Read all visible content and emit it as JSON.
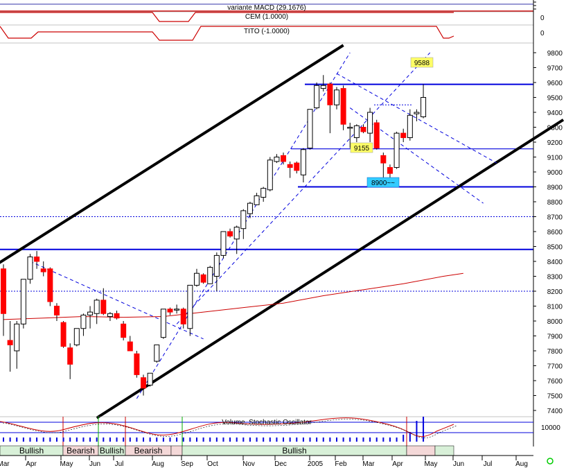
{
  "panels": {
    "macd": {
      "label": "variante MACD (29.1676)"
    },
    "cem": {
      "label": "CEM (1.0000)",
      "scale": "0"
    },
    "tito": {
      "label": "TITO (-1.0000)",
      "scale": "0"
    },
    "volume": {
      "label": "Volume, Stochastic Oscillator",
      "scale": "10000"
    }
  },
  "annotations": {
    "resistance": "9588",
    "mid": "9155",
    "support": "8900~~"
  },
  "bands": [
    {
      "label": "Bullish",
      "type": "bullish"
    },
    {
      "label": "Bearish",
      "type": "bearish"
    },
    {
      "label": "Bullish",
      "type": "bullish"
    },
    {
      "label": "Bearish",
      "type": "bearish"
    },
    {
      "label": "",
      "type": "bearish"
    },
    {
      "label": "Bullish",
      "type": "bullish"
    },
    {
      "label": "",
      "type": "bearish"
    },
    {
      "label": "",
      "type": "bullish"
    }
  ],
  "colors": {
    "bull": "#ffffff",
    "bear": "#ff0000",
    "blue": "#0000dd",
    "red_line": "#cc0000",
    "channel": "#000000",
    "label_yellow": "#ffff66",
    "label_cyan": "#33ccff",
    "bullish_band": "#d8f0d8",
    "bearish_band": "#f4d8d8"
  },
  "chart_data": {
    "type": "candlestick",
    "x_ticks": [
      "Mar",
      "Apr",
      "May",
      "Jun",
      "Jul",
      "Aug",
      "Sep",
      "Oct",
      "Nov",
      "Dec",
      "2005",
      "Feb",
      "Mar",
      "Apr",
      "May",
      "Jun",
      "Jul",
      "Aug"
    ],
    "ylim": [
      7400,
      9800
    ],
    "y_ticks": [
      7400,
      7500,
      7600,
      7700,
      7800,
      7900,
      8000,
      8100,
      8200,
      8300,
      8400,
      8500,
      8600,
      8700,
      8800,
      8900,
      9000,
      9100,
      9200,
      9300,
      9400,
      9500,
      9600,
      9700,
      9800
    ],
    "horizontal_lines": [
      {
        "y": 9588,
        "style": "solid"
      },
      {
        "y": 9155,
        "style": "solid"
      },
      {
        "y": 8900,
        "style": "solid"
      },
      {
        "y": 8480,
        "style": "solid"
      },
      {
        "y": 8700,
        "style": "dotted"
      },
      {
        "y": 8200,
        "style": "dotted"
      }
    ],
    "candles": [
      {
        "o": 8350,
        "h": 8380,
        "l": 7900,
        "c": 8050
      },
      {
        "o": 7870,
        "h": 8000,
        "l": 7660,
        "c": 7840
      },
      {
        "o": 7800,
        "h": 8000,
        "l": 7680,
        "c": 7980
      },
      {
        "o": 7980,
        "h": 8280,
        "l": 7950,
        "c": 8280
      },
      {
        "o": 8280,
        "h": 8450,
        "l": 8250,
        "c": 8430
      },
      {
        "o": 8430,
        "h": 8470,
        "l": 8350,
        "c": 8400
      },
      {
        "o": 8350,
        "h": 8400,
        "l": 8300,
        "c": 8330
      },
      {
        "o": 8350,
        "h": 8360,
        "l": 8100,
        "c": 8130
      },
      {
        "o": 8100,
        "h": 8120,
        "l": 8000,
        "c": 8040
      },
      {
        "o": 7990,
        "h": 8000,
        "l": 7820,
        "c": 7830
      },
      {
        "o": 7820,
        "h": 7850,
        "l": 7610,
        "c": 7710
      },
      {
        "o": 7840,
        "h": 7950,
        "l": 7830,
        "c": 7950
      },
      {
        "o": 7950,
        "h": 8050,
        "l": 7900,
        "c": 8040
      },
      {
        "o": 8040,
        "h": 8100,
        "l": 7950,
        "c": 8060
      },
      {
        "o": 8050,
        "h": 8150,
        "l": 7980,
        "c": 8140
      },
      {
        "o": 8140,
        "h": 8220,
        "l": 8040,
        "c": 8050
      },
      {
        "o": 8030,
        "h": 8060,
        "l": 8000,
        "c": 8050
      },
      {
        "o": 8050,
        "h": 8070,
        "l": 8010,
        "c": 8020
      },
      {
        "o": 7980,
        "h": 8000,
        "l": 7870,
        "c": 7890
      },
      {
        "o": 7860,
        "h": 7900,
        "l": 7800,
        "c": 7800
      },
      {
        "o": 7780,
        "h": 7800,
        "l": 7620,
        "c": 7640
      },
      {
        "o": 7620,
        "h": 7640,
        "l": 7500,
        "c": 7550
      },
      {
        "o": 7570,
        "h": 7650,
        "l": 7560,
        "c": 7650
      },
      {
        "o": 7730,
        "h": 7840,
        "l": 7720,
        "c": 7840
      },
      {
        "o": 7890,
        "h": 8080,
        "l": 7880,
        "c": 8080
      },
      {
        "o": 8080,
        "h": 8090,
        "l": 8040,
        "c": 8060
      },
      {
        "o": 8080,
        "h": 8110,
        "l": 8050,
        "c": 8080
      },
      {
        "o": 8080,
        "h": 8090,
        "l": 7950,
        "c": 7980
      },
      {
        "o": 7950,
        "h": 8240,
        "l": 7900,
        "c": 8240
      },
      {
        "o": 8240,
        "h": 8350,
        "l": 8230,
        "c": 8320
      },
      {
        "o": 8310,
        "h": 8320,
        "l": 8250,
        "c": 8260
      },
      {
        "o": 8250,
        "h": 8370,
        "l": 8250,
        "c": 8360
      },
      {
        "o": 8300,
        "h": 8460,
        "l": 8200,
        "c": 8440
      },
      {
        "o": 8440,
        "h": 8600,
        "l": 8420,
        "c": 8600
      },
      {
        "o": 8600,
        "h": 8620,
        "l": 8560,
        "c": 8570
      },
      {
        "o": 8550,
        "h": 8640,
        "l": 8450,
        "c": 8630
      },
      {
        "o": 8620,
        "h": 8750,
        "l": 8550,
        "c": 8740
      },
      {
        "o": 8720,
        "h": 8800,
        "l": 8690,
        "c": 8790
      },
      {
        "o": 8780,
        "h": 8860,
        "l": 8780,
        "c": 8840
      },
      {
        "o": 8830,
        "h": 8900,
        "l": 8800,
        "c": 8890
      },
      {
        "o": 8880,
        "h": 9100,
        "l": 8870,
        "c": 9080
      },
      {
        "o": 9070,
        "h": 9120,
        "l": 9060,
        "c": 9100
      },
      {
        "o": 9110,
        "h": 9130,
        "l": 9050,
        "c": 9070
      },
      {
        "o": 9050,
        "h": 9070,
        "l": 8960,
        "c": 9030
      },
      {
        "o": 9060,
        "h": 9070,
        "l": 8990,
        "c": 9010
      },
      {
        "o": 8980,
        "h": 9160,
        "l": 8930,
        "c": 9150
      },
      {
        "o": 9160,
        "h": 9420,
        "l": 9150,
        "c": 9420
      },
      {
        "o": 9430,
        "h": 9600,
        "l": 9420,
        "c": 9580
      },
      {
        "o": 9560,
        "h": 9650,
        "l": 9540,
        "c": 9580
      },
      {
        "o": 9590,
        "h": 9600,
        "l": 9260,
        "c": 9450
      },
      {
        "o": 9450,
        "h": 9570,
        "l": 9420,
        "c": 9550
      },
      {
        "o": 9560,
        "h": 9580,
        "l": 9280,
        "c": 9320
      },
      {
        "o": 9300,
        "h": 9330,
        "l": 9160,
        "c": 9300
      },
      {
        "o": 9230,
        "h": 9320,
        "l": 9200,
        "c": 9310
      },
      {
        "o": 9300,
        "h": 9320,
        "l": 9260,
        "c": 9270
      },
      {
        "o": 9260,
        "h": 9430,
        "l": 9200,
        "c": 9400
      },
      {
        "o": 9330,
        "h": 9350,
        "l": 9150,
        "c": 9160
      },
      {
        "o": 9110,
        "h": 9130,
        "l": 8940,
        "c": 9060
      },
      {
        "o": 9030,
        "h": 9050,
        "l": 8920,
        "c": 8990
      },
      {
        "o": 9030,
        "h": 9270,
        "l": 9020,
        "c": 9260
      },
      {
        "o": 9260,
        "h": 9290,
        "l": 9200,
        "c": 9230
      },
      {
        "o": 9230,
        "h": 9420,
        "l": 9210,
        "c": 9380
      },
      {
        "o": 9390,
        "h": 9420,
        "l": 9340,
        "c": 9400
      },
      {
        "o": 9370,
        "h": 9588,
        "l": 9360,
        "c": 9500
      }
    ],
    "moving_average": [
      [
        0,
        8010
      ],
      [
        6,
        8020
      ],
      [
        12,
        8030
      ],
      [
        18,
        8025
      ],
      [
        24,
        8030
      ],
      [
        30,
        8060
      ],
      [
        36,
        8090
      ],
      [
        42,
        8120
      ],
      [
        48,
        8170
      ],
      [
        54,
        8210
      ],
      [
        60,
        8250
      ],
      [
        66,
        8300
      ],
      [
        69,
        8320
      ]
    ],
    "trendlines": [
      {
        "from": [
          -1,
          8380
        ],
        "to": [
          51,
          9850
        ],
        "style": "thick"
      },
      {
        "from": [
          14,
          7350
        ],
        "to": [
          84,
          9350
        ],
        "style": "thick"
      },
      {
        "from": [
          20,
          7480
        ],
        "to": [
          52,
          9800
        ],
        "style": "dashed"
      },
      {
        "from": [
          26,
          7980
        ],
        "to": [
          64,
          9800
        ],
        "style": "dashed"
      },
      {
        "from": [
          4,
          8400
        ],
        "to": [
          30,
          7880
        ],
        "style": "dashed"
      },
      {
        "from": [
          50,
          9660
        ],
        "to": [
          74,
          9060
        ],
        "style": "dashed"
      },
      {
        "from": [
          52,
          9430
        ],
        "to": [
          72,
          8790
        ],
        "style": "dashed"
      }
    ]
  }
}
